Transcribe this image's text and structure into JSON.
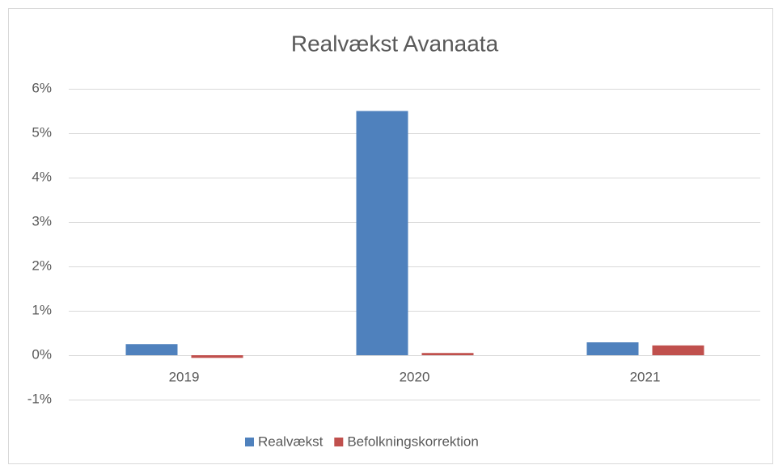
{
  "chart_data": {
    "type": "bar",
    "title": "Realvækst Avanaata",
    "categories": [
      "2019",
      "2020",
      "2021"
    ],
    "series": [
      {
        "name": "Realvækst",
        "color": "#4f81bd",
        "values": [
          0.25,
          5.5,
          0.29
        ]
      },
      {
        "name": "Befolkningskorrektion",
        "color": "#c0504d",
        "values": [
          -0.06,
          0.05,
          0.22
        ]
      }
    ],
    "ylim": [
      -1,
      6
    ],
    "yticks": [
      {
        "value": -1,
        "label": "-1%"
      },
      {
        "value": 0,
        "label": "0%"
      },
      {
        "value": 1,
        "label": "1%"
      },
      {
        "value": 2,
        "label": "2%"
      },
      {
        "value": 3,
        "label": "3%"
      },
      {
        "value": 4,
        "label": "4%"
      },
      {
        "value": 5,
        "label": "5%"
      },
      {
        "value": 6,
        "label": "6%"
      }
    ],
    "grid": true,
    "legend": "bottom"
  }
}
